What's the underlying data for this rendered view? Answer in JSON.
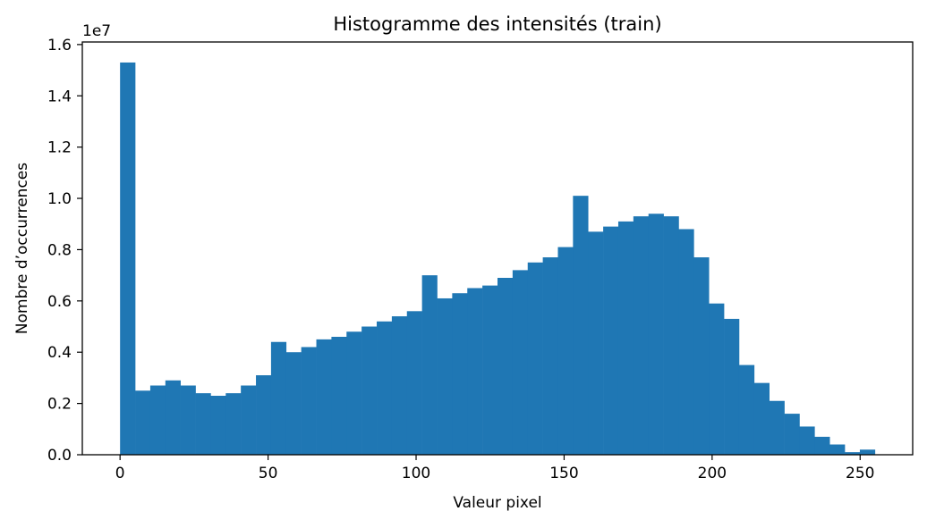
{
  "chart_data": {
    "type": "bar",
    "title": "Histogramme des intensités (train)",
    "xlabel": "Valeur pixel",
    "ylabel": "Nombre d’occurrences",
    "y_offset_text": "1e7",
    "y_scale_factor": 10000000,
    "xlim": [
      -12.75,
      267.75
    ],
    "ylim": [
      0,
      16.1
    ],
    "x_ticks": [
      0,
      50,
      100,
      150,
      200,
      250
    ],
    "x_tick_labels": [
      "0",
      "50",
      "100",
      "150",
      "200",
      "250"
    ],
    "y_ticks": [
      0,
      2,
      4,
      6,
      8,
      10,
      12,
      14,
      16
    ],
    "y_tick_labels": [
      "0.0",
      "0.2",
      "0.4",
      "0.6",
      "0.8",
      "1.0",
      "1.2",
      "1.4",
      "1.6"
    ],
    "bar_color": "#1f77b4",
    "bin_edges": [
      0,
      5.1,
      10.2,
      15.3,
      20.4,
      25.5,
      30.6,
      35.7,
      40.8,
      45.9,
      51,
      56.1,
      61.2,
      66.3,
      71.4,
      76.5,
      81.6,
      86.7,
      91.8,
      96.9,
      102,
      107.1,
      112.2,
      117.3,
      122.4,
      127.5,
      132.6,
      137.7,
      142.8,
      147.9,
      153,
      158.1,
      163.2,
      168.3,
      173.4,
      178.5,
      183.6,
      188.7,
      193.8,
      198.9,
      204,
      209.1,
      214.2,
      219.3,
      224.4,
      229.5,
      234.6,
      239.7,
      244.8,
      249.9,
      255
    ],
    "counts_1e7": [
      1.53,
      0.25,
      0.27,
      0.29,
      0.27,
      0.24,
      0.23,
      0.24,
      0.27,
      0.31,
      0.44,
      0.4,
      0.42,
      0.45,
      0.46,
      0.48,
      0.5,
      0.52,
      0.54,
      0.56,
      0.7,
      0.61,
      0.63,
      0.65,
      0.66,
      0.69,
      0.72,
      0.75,
      0.77,
      0.81,
      1.01,
      0.87,
      0.89,
      0.91,
      0.93,
      0.94,
      0.93,
      0.88,
      0.77,
      0.59,
      0.53,
      0.35,
      0.28,
      0.21,
      0.16,
      0.11,
      0.07,
      0.04,
      0.01,
      0.02
    ]
  }
}
